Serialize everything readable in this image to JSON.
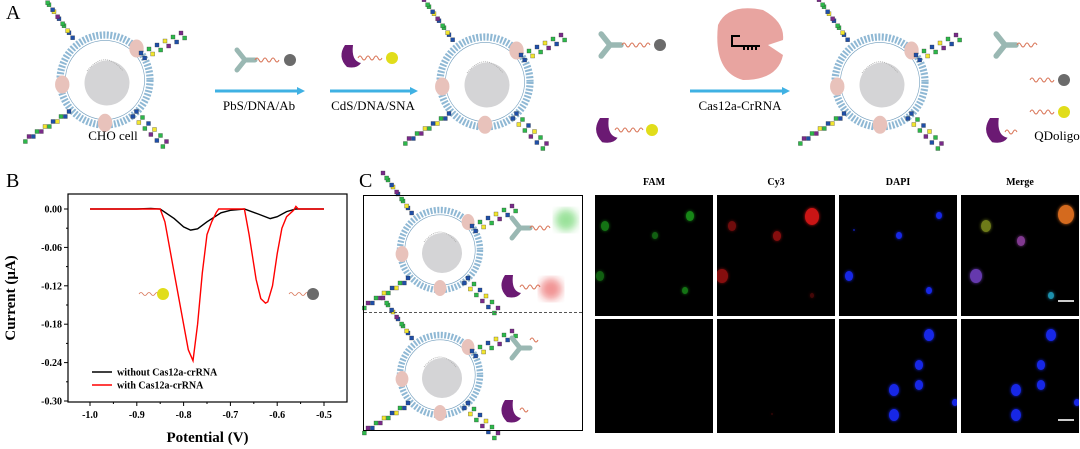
{
  "panel_a": {
    "label": "A",
    "cell_label": "CHO cell",
    "step1_label": "PbS/DNA/Ab",
    "step2_label": "CdS/DNA/SNA",
    "step3_label": "Cas12a-CrRNA",
    "product_label": "QDoligo"
  },
  "panel_b": {
    "label": "B"
  },
  "panel_c": {
    "label": "C",
    "columns": [
      "FAM",
      "Cy3",
      "DAPI",
      "Merge"
    ]
  },
  "colors": {
    "membrane": "#8fb8d4",
    "arrow": "#3fb1e3",
    "pbs_qd": "#6b6b6b",
    "cds_qd": "#e1dd1a",
    "sna": "#6b1a73",
    "antibody": "#9ab8b3",
    "cas12a": "#e8a4a0",
    "fam": "#22c022",
    "cy3": "#e01818",
    "dapi": "#1a2cff"
  },
  "chart_data": {
    "type": "line",
    "title": "",
    "xlabel": "Potential (V)",
    "ylabel": "Current (μA)",
    "xlim": [
      -1.05,
      -0.47
    ],
    "ylim": [
      -0.3,
      0.02
    ],
    "xticks": [
      "-1.0",
      "-0.9",
      "-0.8",
      "-0.7",
      "-0.6",
      "-0.5"
    ],
    "xtick_values": [
      -1.0,
      -0.9,
      -0.8,
      -0.7,
      -0.6,
      -0.5
    ],
    "yticks": [
      "0.00",
      "-0.06",
      "-0.12",
      "-0.18",
      "-0.24",
      "-0.30"
    ],
    "ytick_values": [
      0.0,
      -0.06,
      -0.12,
      -0.18,
      -0.24,
      -0.3
    ],
    "grid": false,
    "legend_position": "bottom-left",
    "series": [
      {
        "name": "without Cas12a-crRNA",
        "color": "#000000",
        "x": [
          -1.0,
          -0.9,
          -0.87,
          -0.85,
          -0.82,
          -0.8,
          -0.785,
          -0.77,
          -0.75,
          -0.72,
          -0.7,
          -0.67,
          -0.64,
          -0.615,
          -0.6,
          -0.58,
          -0.56,
          -0.5
        ],
        "y": [
          0,
          0,
          0.001,
          0,
          -0.015,
          -0.028,
          -0.033,
          -0.031,
          -0.02,
          -0.006,
          -0.002,
          0,
          -0.008,
          -0.015,
          -0.012,
          -0.004,
          0,
          0
        ]
      },
      {
        "name": "with Cas12a-crRNA",
        "color": "#ff0000",
        "x": [
          -1.0,
          -0.85,
          -0.84,
          -0.82,
          -0.8,
          -0.79,
          -0.78,
          -0.77,
          -0.76,
          -0.75,
          -0.74,
          -0.73,
          -0.725,
          -0.67,
          -0.66,
          -0.645,
          -0.635,
          -0.625,
          -0.62,
          -0.61,
          -0.6,
          -0.59,
          -0.58,
          -0.565,
          -0.56,
          -0.555,
          -0.5
        ],
        "y": [
          0,
          0,
          -0.02,
          -0.1,
          -0.18,
          -0.22,
          -0.237,
          -0.18,
          -0.1,
          -0.04,
          -0.02,
          -0.005,
          0,
          0,
          -0.04,
          -0.11,
          -0.14,
          -0.147,
          -0.145,
          -0.12,
          -0.07,
          -0.03,
          -0.012,
          -0.002,
          0.004,
          0,
          0
        ]
      }
    ]
  }
}
